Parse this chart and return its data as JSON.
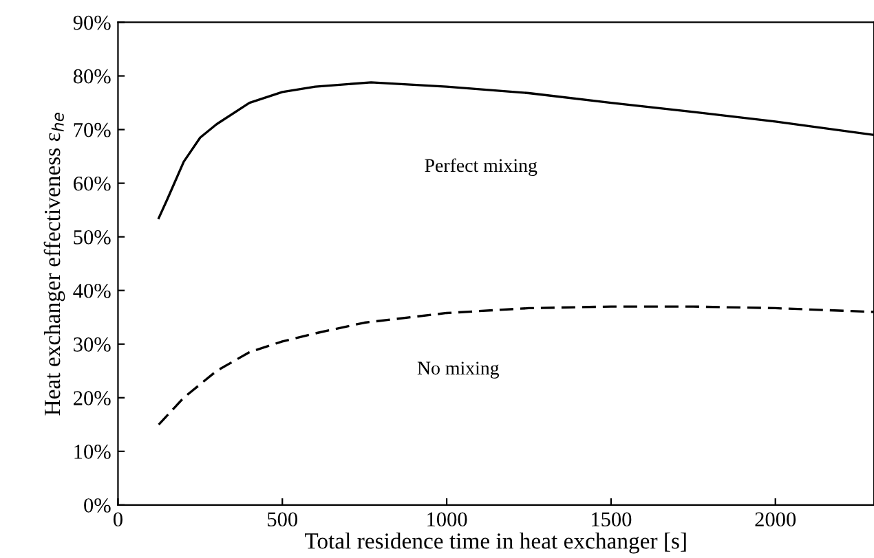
{
  "chart_data": {
    "type": "line",
    "xlabel": "Total residence time in heat exchanger [s]",
    "ylabel": "Heat exchanger effectiveness ε$_{he}$",
    "series": [
      {
        "x": [
          124,
          150,
          200,
          250,
          300,
          400,
          500,
          600,
          770,
          1000,
          1250,
          1500,
          1750,
          2000,
          2300
        ],
        "values": [
          53.5,
          57,
          64,
          68.5,
          71,
          75,
          77,
          78,
          78.8,
          78,
          76.8,
          75,
          73.3,
          71.5,
          69
        ],
        "color": "#000000",
        "line_style": "solid"
      },
      {
        "x": [
          124,
          200,
          300,
          400,
          500,
          600,
          750,
          1000,
          1250,
          1500,
          1750,
          2000,
          2300
        ],
        "values": [
          15,
          20,
          25,
          28.5,
          30.5,
          32,
          34,
          35.8,
          36.7,
          37,
          37,
          36.7,
          36
        ],
        "color": "#000000",
        "line_style": "dashed"
      }
    ],
    "annotations": [
      "Perfect mixing",
      "No mixing"
    ],
    "xlim": [
      0,
      2300
    ],
    "xticks": [
      0,
      500,
      1000,
      1500,
      2000
    ],
    "ylim": [
      0,
      90
    ],
    "yticks": [
      {
        "value": 0,
        "label": "0%"
      },
      {
        "value": 10,
        "label": "10%"
      },
      {
        "value": 20,
        "label": "20%"
      },
      {
        "value": 30,
        "label": "30%"
      },
      {
        "value": 40,
        "label": "40%"
      },
      {
        "value": 50,
        "label": "50%"
      },
      {
        "value": 60,
        "label": "60%"
      },
      {
        "value": 70,
        "label": "70%"
      },
      {
        "value": 80,
        "label": "80%"
      },
      {
        "value": 90,
        "label": "90%"
      }
    ],
    "grid": false,
    "legend": false
  }
}
